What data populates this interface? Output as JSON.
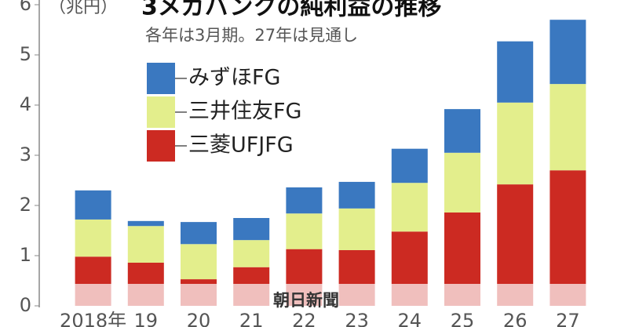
{
  "chart_data": {
    "type": "stacked-bar",
    "title": "3メガバンクの純利益の推移",
    "unit": "（兆円）",
    "subtitle": "各年は3月期。27年は見通し",
    "credit": "朝日新聞",
    "categories": [
      "2018年",
      "19",
      "20",
      "21",
      "22",
      "23",
      "24",
      "25",
      "26",
      "27"
    ],
    "series": [
      {
        "name": "三菱UFJFG",
        "color": "#cc2a22",
        "values": [
          0.98,
          0.86,
          0.53,
          0.77,
          1.13,
          1.11,
          1.48,
          1.86,
          2.42,
          2.7
        ]
      },
      {
        "name": "三井住友FG",
        "color": "#e3ee8c",
        "values": [
          0.74,
          0.73,
          0.7,
          0.54,
          0.71,
          0.83,
          0.97,
          1.19,
          1.63,
          1.72
        ]
      },
      {
        "name": "みずほFG",
        "color": "#3a78c0",
        "values": [
          0.58,
          0.1,
          0.44,
          0.44,
          0.52,
          0.53,
          0.68,
          0.87,
          1.22,
          1.28
        ]
      }
    ],
    "ylim": [
      0,
      6
    ],
    "yticks": [
      0,
      1,
      2,
      3,
      4,
      5,
      6
    ],
    "grid": false
  }
}
